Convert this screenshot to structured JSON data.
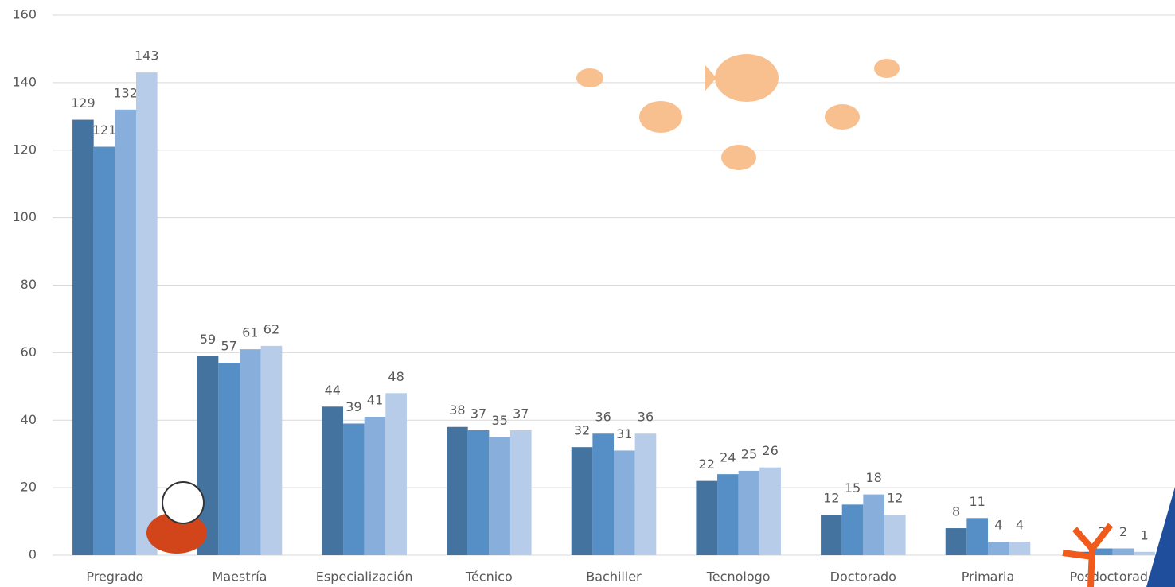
{
  "chart_data": {
    "type": "bar",
    "categories": [
      "Pregrado",
      "Maestría",
      "Especialización",
      "Técnico",
      "Bachiller",
      "Tecnologo",
      "Doctorado",
      "Primaria",
      "Posdoctorado"
    ],
    "series": [
      {
        "color": "#44739f",
        "values": [
          129,
          59,
          44,
          38,
          32,
          22,
          12,
          8,
          1
        ]
      },
      {
        "color": "#568fc6",
        "values": [
          121,
          57,
          39,
          37,
          36,
          24,
          15,
          11,
          2
        ]
      },
      {
        "color": "#88aedc",
        "values": [
          132,
          61,
          41,
          35,
          31,
          25,
          18,
          4,
          2
        ]
      },
      {
        "color": "#b7cce8",
        "values": [
          143,
          62,
          48,
          37,
          36,
          26,
          12,
          4,
          1
        ]
      }
    ],
    "ylim": [
      0,
      160
    ],
    "yticks": [
      0,
      20,
      40,
      60,
      80,
      100,
      120,
      140,
      160
    ],
    "grid": true
  }
}
